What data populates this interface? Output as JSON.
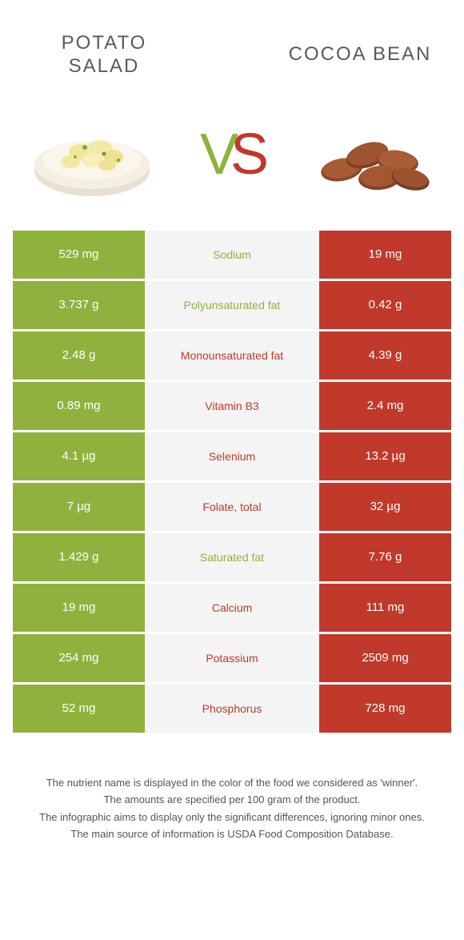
{
  "colors": {
    "left": "#8fb23e",
    "right": "#c0392b",
    "mid_bg": "#f4f4f4",
    "mid_text_left": "#8fb23e",
    "mid_text_right": "#c0392b"
  },
  "header": {
    "left_title": "POTATO SALAD",
    "right_title": "COCOA BEAN"
  },
  "vs": {
    "v": "V",
    "s": "S"
  },
  "rows": [
    {
      "left": "529 mg",
      "label": "Sodium",
      "right": "19 mg",
      "winner": "left"
    },
    {
      "left": "3.737 g",
      "label": "Polyunsaturated fat",
      "right": "0.42 g",
      "winner": "left"
    },
    {
      "left": "2.48 g",
      "label": "Monounsaturated fat",
      "right": "4.39 g",
      "winner": "right"
    },
    {
      "left": "0.89 mg",
      "label": "Vitamin B3",
      "right": "2.4 mg",
      "winner": "right"
    },
    {
      "left": "4.1 µg",
      "label": "Selenium",
      "right": "13.2 µg",
      "winner": "right"
    },
    {
      "left": "7 µg",
      "label": "Folate, total",
      "right": "32 µg",
      "winner": "right"
    },
    {
      "left": "1.429 g",
      "label": "Saturated fat",
      "right": "7.76 g",
      "winner": "left"
    },
    {
      "left": "19 mg",
      "label": "Calcium",
      "right": "111 mg",
      "winner": "right"
    },
    {
      "left": "254 mg",
      "label": "Potassium",
      "right": "2509 mg",
      "winner": "right"
    },
    {
      "left": "52 mg",
      "label": "Phosphorus",
      "right": "728 mg",
      "winner": "right"
    }
  ],
  "footer": {
    "line1": "The nutrient name is displayed in the color of the food we considered as 'winner'.",
    "line2": "The amounts are specified per 100 gram of the product.",
    "line3": "The infographic aims to display only the significant differences, ignoring minor ones.",
    "line4": "The main source of information is USDA Food Composition Database."
  }
}
